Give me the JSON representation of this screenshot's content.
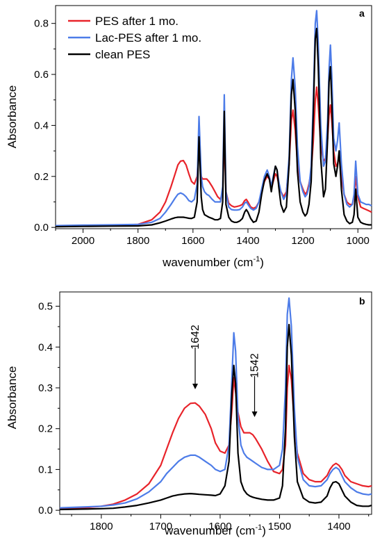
{
  "chart_data": [
    {
      "panel_label": "a",
      "type": "line",
      "xlabel": "wavenumber (cm",
      "xlabel_sup": "-1",
      "xlabel_close": ")",
      "ylabel": "Absorbance",
      "xlim": [
        2100,
        950
      ],
      "ylim": [
        -0.005,
        0.87
      ],
      "x_reversed": true,
      "xticks": [
        2000,
        1800,
        1600,
        1400,
        1200,
        1000
      ],
      "yticks": [
        0.0,
        0.2,
        0.4,
        0.6,
        0.8
      ],
      "ytick_labels": [
        "0.0",
        "0.2",
        "0.4",
        "0.6",
        "0.8"
      ],
      "legend_position": "top-left",
      "series": [
        {
          "name": "PES after 1 mo.",
          "color": "#e8232a",
          "x": [
            2100,
            2000,
            1900,
            1800,
            1750,
            1720,
            1700,
            1680,
            1665,
            1655,
            1645,
            1635,
            1625,
            1615,
            1605,
            1595,
            1585,
            1578,
            1570,
            1565,
            1558,
            1550,
            1542,
            1530,
            1520,
            1510,
            1500,
            1492,
            1486,
            1480,
            1470,
            1460,
            1450,
            1440,
            1430,
            1420,
            1412,
            1406,
            1400,
            1390,
            1380,
            1370,
            1360,
            1350,
            1340,
            1330,
            1322,
            1315,
            1308,
            1300,
            1294,
            1288,
            1280,
            1270,
            1260,
            1250,
            1242,
            1236,
            1228,
            1220,
            1210,
            1200,
            1192,
            1185,
            1178,
            1170,
            1162,
            1155,
            1150,
            1144,
            1135,
            1125,
            1118,
            1110,
            1105,
            1100,
            1095,
            1088,
            1080,
            1074,
            1068,
            1060,
            1050,
            1040,
            1030,
            1020,
            1014,
            1008,
            1000,
            990,
            980,
            970,
            960,
            950
          ],
          "y": [
            0.005,
            0.007,
            0.008,
            0.012,
            0.03,
            0.06,
            0.1,
            0.16,
            0.21,
            0.245,
            0.26,
            0.262,
            0.245,
            0.21,
            0.18,
            0.17,
            0.2,
            0.325,
            0.2,
            0.19,
            0.19,
            0.19,
            0.18,
            0.16,
            0.14,
            0.12,
            0.11,
            0.14,
            0.35,
            0.14,
            0.095,
            0.085,
            0.08,
            0.082,
            0.085,
            0.09,
            0.105,
            0.11,
            0.1,
            0.08,
            0.075,
            0.08,
            0.1,
            0.14,
            0.18,
            0.2,
            0.19,
            0.15,
            0.18,
            0.21,
            0.2,
            0.17,
            0.14,
            0.12,
            0.14,
            0.25,
            0.42,
            0.46,
            0.38,
            0.25,
            0.18,
            0.15,
            0.13,
            0.14,
            0.17,
            0.22,
            0.34,
            0.5,
            0.55,
            0.48,
            0.32,
            0.26,
            0.27,
            0.35,
            0.44,
            0.48,
            0.42,
            0.3,
            0.24,
            0.25,
            0.28,
            0.2,
            0.13,
            0.1,
            0.09,
            0.09,
            0.12,
            0.2,
            0.12,
            0.08,
            0.075,
            0.07,
            0.065,
            0.06
          ]
        },
        {
          "name": "Lac-PES after 1 mo.",
          "color": "#4d7ce8",
          "x": [
            2100,
            2000,
            1900,
            1800,
            1750,
            1720,
            1700,
            1680,
            1665,
            1655,
            1645,
            1635,
            1625,
            1615,
            1605,
            1595,
            1585,
            1578,
            1570,
            1565,
            1558,
            1550,
            1542,
            1530,
            1520,
            1510,
            1500,
            1492,
            1486,
            1480,
            1470,
            1460,
            1450,
            1440,
            1430,
            1420,
            1412,
            1406,
            1400,
            1390,
            1380,
            1370,
            1360,
            1350,
            1340,
            1330,
            1322,
            1315,
            1308,
            1300,
            1294,
            1288,
            1280,
            1270,
            1260,
            1250,
            1242,
            1236,
            1228,
            1220,
            1210,
            1200,
            1192,
            1185,
            1178,
            1170,
            1162,
            1155,
            1150,
            1144,
            1135,
            1125,
            1118,
            1110,
            1105,
            1100,
            1095,
            1088,
            1080,
            1074,
            1068,
            1060,
            1050,
            1040,
            1030,
            1020,
            1014,
            1008,
            1000,
            990,
            980,
            970,
            960,
            950
          ],
          "y": [
            0.007,
            0.009,
            0.01,
            0.012,
            0.02,
            0.035,
            0.06,
            0.09,
            0.115,
            0.13,
            0.135,
            0.13,
            0.12,
            0.105,
            0.1,
            0.11,
            0.17,
            0.435,
            0.2,
            0.16,
            0.14,
            0.13,
            0.125,
            0.11,
            0.1,
            0.1,
            0.1,
            0.16,
            0.52,
            0.14,
            0.08,
            0.07,
            0.068,
            0.068,
            0.07,
            0.08,
            0.095,
            0.1,
            0.09,
            0.075,
            0.068,
            0.075,
            0.1,
            0.15,
            0.2,
            0.225,
            0.2,
            0.16,
            0.2,
            0.24,
            0.225,
            0.18,
            0.14,
            0.11,
            0.13,
            0.28,
            0.58,
            0.665,
            0.55,
            0.32,
            0.18,
            0.14,
            0.12,
            0.13,
            0.16,
            0.24,
            0.5,
            0.8,
            0.85,
            0.72,
            0.4,
            0.24,
            0.26,
            0.42,
            0.62,
            0.715,
            0.6,
            0.35,
            0.3,
            0.34,
            0.41,
            0.25,
            0.13,
            0.09,
            0.08,
            0.09,
            0.13,
            0.26,
            0.13,
            0.1,
            0.095,
            0.09,
            0.09,
            0.085
          ]
        },
        {
          "name": "clean PES",
          "color": "#000000",
          "x": [
            2100,
            2000,
            1900,
            1800,
            1750,
            1720,
            1700,
            1680,
            1665,
            1655,
            1645,
            1635,
            1625,
            1615,
            1605,
            1595,
            1585,
            1578,
            1570,
            1565,
            1558,
            1550,
            1542,
            1530,
            1520,
            1510,
            1500,
            1492,
            1486,
            1480,
            1470,
            1460,
            1450,
            1440,
            1430,
            1420,
            1412,
            1406,
            1400,
            1390,
            1380,
            1370,
            1360,
            1350,
            1340,
            1330,
            1322,
            1315,
            1308,
            1300,
            1294,
            1288,
            1280,
            1270,
            1260,
            1250,
            1242,
            1236,
            1228,
            1220,
            1210,
            1200,
            1192,
            1185,
            1178,
            1170,
            1162,
            1155,
            1150,
            1144,
            1135,
            1125,
            1118,
            1110,
            1105,
            1100,
            1095,
            1088,
            1080,
            1074,
            1068,
            1060,
            1050,
            1040,
            1030,
            1020,
            1014,
            1008,
            1000,
            990,
            980,
            970,
            960,
            950
          ],
          "y": [
            0.003,
            0.004,
            0.005,
            0.006,
            0.01,
            0.018,
            0.025,
            0.033,
            0.038,
            0.04,
            0.04,
            0.04,
            0.038,
            0.036,
            0.035,
            0.04,
            0.1,
            0.355,
            0.12,
            0.07,
            0.05,
            0.045,
            0.04,
            0.035,
            0.03,
            0.03,
            0.035,
            0.1,
            0.455,
            0.09,
            0.04,
            0.025,
            0.02,
            0.02,
            0.025,
            0.035,
            0.06,
            0.07,
            0.06,
            0.035,
            0.02,
            0.025,
            0.06,
            0.13,
            0.185,
            0.21,
            0.19,
            0.14,
            0.19,
            0.24,
            0.225,
            0.16,
            0.09,
            0.06,
            0.08,
            0.25,
            0.52,
            0.58,
            0.46,
            0.22,
            0.1,
            0.06,
            0.045,
            0.055,
            0.09,
            0.18,
            0.45,
            0.74,
            0.78,
            0.63,
            0.27,
            0.12,
            0.15,
            0.35,
            0.57,
            0.63,
            0.5,
            0.25,
            0.2,
            0.24,
            0.3,
            0.15,
            0.05,
            0.025,
            0.015,
            0.02,
            0.05,
            0.15,
            0.04,
            0.02,
            0.015,
            0.012,
            0.01,
            0.01
          ]
        }
      ]
    },
    {
      "panel_label": "b",
      "type": "line",
      "xlabel": "wavenumber (cm",
      "xlabel_sup": "-1",
      "xlabel_close": ")",
      "ylabel": "Absorbance",
      "xlim": [
        1870,
        1345
      ],
      "ylim": [
        -0.01,
        0.535
      ],
      "x_reversed": true,
      "xticks": [
        1800,
        1700,
        1600,
        1500,
        1400
      ],
      "yticks": [
        0.0,
        0.1,
        0.2,
        0.3,
        0.4,
        0.5
      ],
      "ytick_labels": [
        "0.0",
        "0.1",
        "0.2",
        "0.3",
        "0.4",
        "0.5"
      ],
      "annotations": [
        {
          "text": "1642",
          "x": 1642
        },
        {
          "text": "1542",
          "x": 1542
        }
      ],
      "series": [
        {
          "name": "PES after 1 mo.",
          "color": "#e8232a",
          "x": [
            1870,
            1830,
            1800,
            1780,
            1760,
            1740,
            1720,
            1700,
            1690,
            1680,
            1670,
            1660,
            1650,
            1642,
            1635,
            1625,
            1615,
            1608,
            1600,
            1592,
            1585,
            1580,
            1577,
            1574,
            1570,
            1565,
            1560,
            1555,
            1550,
            1545,
            1540,
            1530,
            1520,
            1510,
            1500,
            1495,
            1490,
            1487,
            1484,
            1480,
            1475,
            1470,
            1460,
            1450,
            1440,
            1430,
            1420,
            1415,
            1410,
            1405,
            1400,
            1395,
            1390,
            1380,
            1370,
            1360,
            1350,
            1345
          ],
          "y": [
            0.004,
            0.006,
            0.01,
            0.015,
            0.025,
            0.04,
            0.065,
            0.11,
            0.15,
            0.19,
            0.225,
            0.25,
            0.262,
            0.263,
            0.255,
            0.235,
            0.2,
            0.165,
            0.145,
            0.14,
            0.16,
            0.25,
            0.325,
            0.29,
            0.24,
            0.205,
            0.19,
            0.19,
            0.19,
            0.185,
            0.175,
            0.15,
            0.12,
            0.095,
            0.09,
            0.1,
            0.16,
            0.3,
            0.355,
            0.32,
            0.21,
            0.14,
            0.09,
            0.075,
            0.07,
            0.07,
            0.085,
            0.1,
            0.11,
            0.115,
            0.11,
            0.1,
            0.085,
            0.07,
            0.065,
            0.06,
            0.058,
            0.06
          ]
        },
        {
          "name": "Lac-PES after 1 mo.",
          "color": "#4d7ce8",
          "x": [
            1870,
            1830,
            1800,
            1780,
            1760,
            1740,
            1720,
            1700,
            1690,
            1680,
            1670,
            1660,
            1650,
            1642,
            1635,
            1625,
            1615,
            1608,
            1600,
            1592,
            1585,
            1580,
            1577,
            1574,
            1570,
            1565,
            1560,
            1555,
            1550,
            1545,
            1540,
            1530,
            1520,
            1510,
            1500,
            1495,
            1490,
            1487,
            1484,
            1480,
            1475,
            1470,
            1460,
            1450,
            1440,
            1430,
            1420,
            1415,
            1410,
            1405,
            1400,
            1395,
            1390,
            1380,
            1370,
            1360,
            1350,
            1345
          ],
          "y": [
            0.006,
            0.008,
            0.01,
            0.013,
            0.018,
            0.028,
            0.045,
            0.07,
            0.09,
            0.105,
            0.12,
            0.13,
            0.135,
            0.135,
            0.13,
            0.12,
            0.11,
            0.1,
            0.095,
            0.1,
            0.16,
            0.33,
            0.435,
            0.39,
            0.23,
            0.16,
            0.14,
            0.13,
            0.125,
            0.12,
            0.115,
            0.105,
            0.1,
            0.1,
            0.11,
            0.15,
            0.3,
            0.48,
            0.52,
            0.45,
            0.25,
            0.13,
            0.075,
            0.06,
            0.058,
            0.06,
            0.075,
            0.09,
            0.1,
            0.105,
            0.1,
            0.085,
            0.07,
            0.055,
            0.045,
            0.04,
            0.038,
            0.04
          ]
        },
        {
          "name": "clean PES",
          "color": "#000000",
          "x": [
            1870,
            1830,
            1800,
            1780,
            1760,
            1740,
            1720,
            1700,
            1690,
            1680,
            1670,
            1660,
            1650,
            1642,
            1635,
            1625,
            1615,
            1608,
            1600,
            1592,
            1585,
            1580,
            1577,
            1574,
            1570,
            1565,
            1560,
            1555,
            1550,
            1545,
            1540,
            1530,
            1520,
            1510,
            1500,
            1495,
            1490,
            1487,
            1484,
            1480,
            1475,
            1470,
            1460,
            1450,
            1440,
            1430,
            1420,
            1415,
            1410,
            1405,
            1400,
            1395,
            1390,
            1380,
            1370,
            1360,
            1350,
            1345
          ],
          "y": [
            0.002,
            0.003,
            0.004,
            0.005,
            0.008,
            0.012,
            0.018,
            0.025,
            0.03,
            0.035,
            0.038,
            0.04,
            0.041,
            0.04,
            0.039,
            0.038,
            0.037,
            0.036,
            0.04,
            0.06,
            0.12,
            0.29,
            0.355,
            0.31,
            0.14,
            0.07,
            0.05,
            0.04,
            0.035,
            0.032,
            0.03,
            0.027,
            0.025,
            0.025,
            0.03,
            0.06,
            0.2,
            0.4,
            0.455,
            0.38,
            0.18,
            0.07,
            0.03,
            0.02,
            0.018,
            0.02,
            0.035,
            0.055,
            0.068,
            0.07,
            0.065,
            0.05,
            0.035,
            0.02,
            0.012,
            0.01,
            0.01,
            0.012
          ]
        }
      ]
    }
  ]
}
